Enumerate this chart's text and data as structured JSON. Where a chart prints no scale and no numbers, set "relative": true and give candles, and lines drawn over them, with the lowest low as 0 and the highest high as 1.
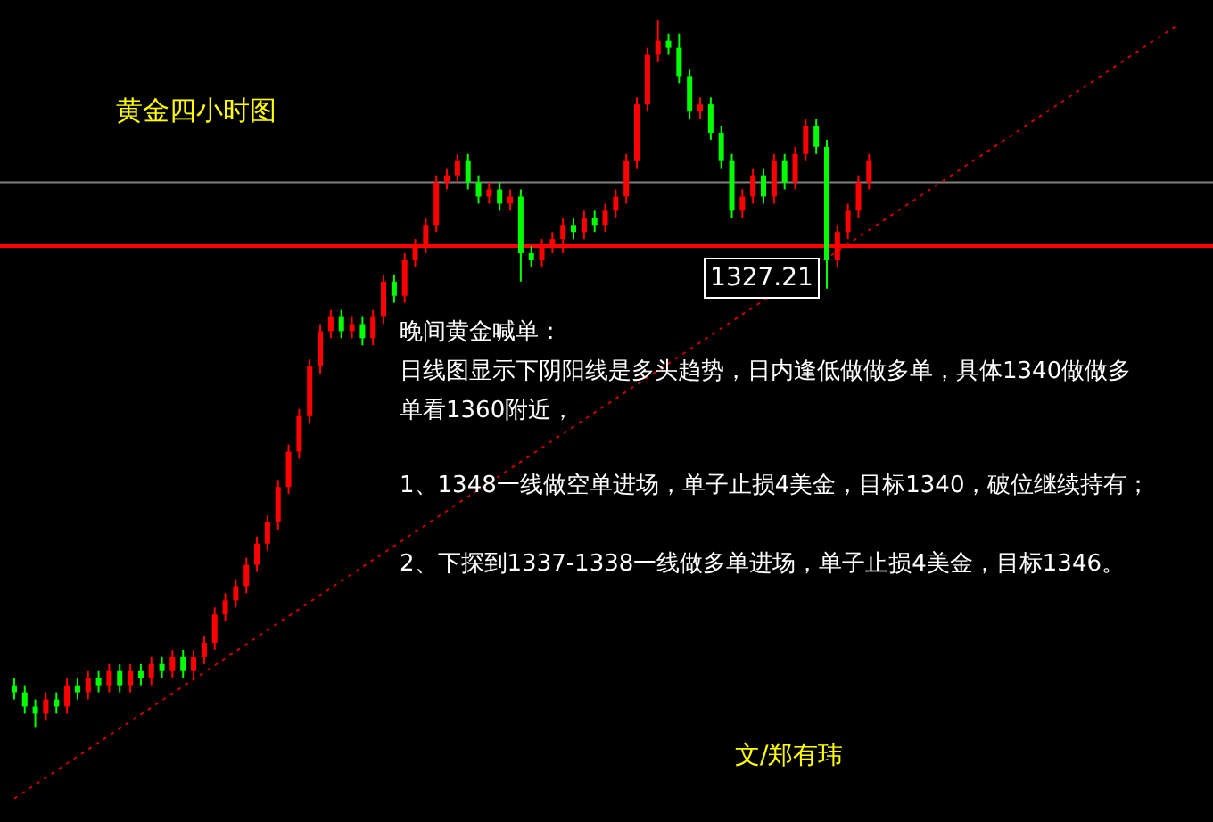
{
  "chart_data": {
    "type": "candlestick",
    "relative": true,
    "title": "黄金四小时图",
    "categories": [
      null,
      null,
      null,
      null,
      null,
      null,
      null,
      null,
      null,
      null,
      null,
      null,
      null,
      null,
      null,
      null,
      null,
      null,
      null,
      null,
      null,
      null,
      null,
      null,
      null,
      null,
      null,
      null,
      null,
      null,
      null,
      null,
      null,
      null,
      null,
      null,
      null,
      null,
      null,
      null,
      null,
      null,
      null,
      null,
      null,
      null,
      null,
      null,
      null,
      null,
      null,
      null,
      null,
      null,
      null,
      null,
      null,
      null,
      null,
      null,
      null,
      null,
      null,
      null,
      null,
      null,
      null,
      null,
      null,
      null,
      null,
      null,
      null,
      null,
      null,
      null,
      null,
      null,
      null,
      null,
      null,
      null,
      null,
      null,
      null,
      null,
      null,
      null,
      null,
      null,
      null,
      null,
      null,
      null,
      null,
      null,
      null,
      null,
      null,
      null,
      null,
      null,
      null,
      null,
      null,
      null,
      null,
      null,
      null,
      null,
      null
    ],
    "ohlc": [
      [
        0.06,
        0.07,
        0.04,
        0.05
      ],
      [
        0.05,
        0.06,
        0.02,
        0.03
      ],
      [
        0.03,
        0.04,
        0,
        0.02
      ],
      [
        0.02,
        0.05,
        0.01,
        0.04
      ],
      [
        0.04,
        0.05,
        0.02,
        0.03
      ],
      [
        0.03,
        0.07,
        0.02,
        0.06
      ],
      [
        0.06,
        0.07,
        0.04,
        0.05
      ],
      [
        0.05,
        0.08,
        0.04,
        0.07
      ],
      [
        0.07,
        0.08,
        0.05,
        0.06
      ],
      [
        0.06,
        0.09,
        0.05,
        0.08
      ],
      [
        0.08,
        0.09,
        0.05,
        0.06
      ],
      [
        0.06,
        0.09,
        0.05,
        0.08
      ],
      [
        0.08,
        0.09,
        0.06,
        0.07
      ],
      [
        0.07,
        0.1,
        0.06,
        0.09
      ],
      [
        0.09,
        0.1,
        0.07,
        0.08
      ],
      [
        0.08,
        0.11,
        0.07,
        0.1
      ],
      [
        0.1,
        0.11,
        0.07,
        0.08
      ],
      [
        0.08,
        0.11,
        0.07,
        0.1
      ],
      [
        0.1,
        0.13,
        0.09,
        0.12
      ],
      [
        0.12,
        0.17,
        0.11,
        0.16
      ],
      [
        0.16,
        0.19,
        0.15,
        0.18
      ],
      [
        0.18,
        0.21,
        0.17,
        0.2
      ],
      [
        0.2,
        0.24,
        0.19,
        0.23
      ],
      [
        0.23,
        0.27,
        0.22,
        0.26
      ],
      [
        0.26,
        0.3,
        0.25,
        0.29
      ],
      [
        0.29,
        0.35,
        0.28,
        0.34
      ],
      [
        0.34,
        0.4,
        0.33,
        0.39
      ],
      [
        0.39,
        0.45,
        0.38,
        0.44
      ],
      [
        0.44,
        0.52,
        0.43,
        0.51
      ],
      [
        0.51,
        0.57,
        0.5,
        0.56
      ],
      [
        0.56,
        0.59,
        0.55,
        0.58
      ],
      [
        0.58,
        0.59,
        0.55,
        0.56
      ],
      [
        0.56,
        0.58,
        0.55,
        0.57
      ],
      [
        0.57,
        0.58,
        0.54,
        0.55
      ],
      [
        0.55,
        0.59,
        0.54,
        0.58
      ],
      [
        0.58,
        0.64,
        0.57,
        0.63
      ],
      [
        0.63,
        0.64,
        0.6,
        0.61
      ],
      [
        0.61,
        0.67,
        0.6,
        0.66
      ],
      [
        0.66,
        0.69,
        0.65,
        0.68
      ],
      [
        0.68,
        0.72,
        0.67,
        0.71
      ],
      [
        0.71,
        0.78,
        0.7,
        0.77
      ],
      [
        0.77,
        0.79,
        0.76,
        0.78
      ],
      [
        0.78,
        0.81,
        0.77,
        0.8
      ],
      [
        0.8,
        0.81,
        0.76,
        0.77
      ],
      [
        0.77,
        0.78,
        0.74,
        0.75
      ],
      [
        0.75,
        0.77,
        0.74,
        0.76
      ],
      [
        0.76,
        0.77,
        0.73,
        0.74
      ],
      [
        0.74,
        0.76,
        0.73,
        0.75
      ],
      [
        0.75,
        0.76,
        0.63,
        0.67
      ],
      [
        0.67,
        0.68,
        0.65,
        0.66
      ],
      [
        0.66,
        0.69,
        0.65,
        0.68
      ],
      [
        0.68,
        0.7,
        0.67,
        0.69
      ],
      [
        0.69,
        0.72,
        0.67,
        0.71
      ],
      [
        0.71,
        0.72,
        0.69,
        0.7
      ],
      [
        0.7,
        0.73,
        0.69,
        0.72
      ],
      [
        0.72,
        0.73,
        0.7,
        0.71
      ],
      [
        0.71,
        0.74,
        0.7,
        0.73
      ],
      [
        0.73,
        0.76,
        0.72,
        0.75
      ],
      [
        0.75,
        0.81,
        0.74,
        0.8
      ],
      [
        0.8,
        0.89,
        0.79,
        0.88
      ],
      [
        0.88,
        0.96,
        0.87,
        0.95
      ],
      [
        0.95,
        1,
        0.94,
        0.97
      ],
      [
        0.97,
        0.98,
        0.95,
        0.96
      ],
      [
        0.96,
        0.98,
        0.91,
        0.92
      ],
      [
        0.92,
        0.93,
        0.86,
        0.87
      ],
      [
        0.87,
        0.89,
        0.86,
        0.88
      ],
      [
        0.88,
        0.89,
        0.83,
        0.84
      ],
      [
        0.84,
        0.85,
        0.79,
        0.8
      ],
      [
        0.8,
        0.81,
        0.72,
        0.73
      ],
      [
        0.73,
        0.76,
        0.72,
        0.75
      ],
      [
        0.75,
        0.79,
        0.74,
        0.78
      ],
      [
        0.78,
        0.79,
        0.74,
        0.75
      ],
      [
        0.75,
        0.81,
        0.74,
        0.8
      ],
      [
        0.8,
        0.81,
        0.76,
        0.77
      ],
      [
        0.77,
        0.82,
        0.76,
        0.81
      ],
      [
        0.81,
        0.86,
        0.8,
        0.85
      ],
      [
        0.85,
        0.86,
        0.81,
        0.82
      ],
      [
        0.82,
        0.83,
        0.62,
        0.66
      ],
      [
        0.66,
        0.71,
        0.65,
        0.7
      ],
      [
        0.7,
        0.74,
        0.69,
        0.73
      ],
      [
        0.73,
        0.78,
        0.72,
        0.77
      ],
      [
        0.77,
        0.81,
        0.76,
        0.8
      ],
      null,
      null,
      null,
      null,
      null,
      null,
      null,
      null,
      null,
      null,
      null,
      null,
      null,
      null,
      null,
      null,
      null,
      null,
      null,
      null,
      null,
      null,
      null,
      null,
      null,
      null,
      null,
      null,
      null
    ],
    "series": [
      {
        "type": "line",
        "values": [
          -0.1,
          null,
          null,
          null,
          null,
          null,
          null,
          null,
          null,
          null,
          null,
          null,
          null,
          null,
          null,
          null,
          null,
          null,
          null,
          null,
          null,
          null,
          null,
          null,
          null,
          null,
          null,
          null,
          null,
          null,
          null,
          null,
          null,
          null,
          null,
          null,
          null,
          null,
          null,
          null,
          null,
          null,
          null,
          null,
          null,
          null,
          null,
          null,
          null,
          null,
          null,
          null,
          null,
          null,
          null,
          null,
          null,
          null,
          null,
          null,
          null,
          null,
          null,
          null,
          null,
          null,
          null,
          null,
          null,
          null,
          null,
          null,
          null,
          null,
          null,
          null,
          null,
          null,
          null,
          null,
          null,
          null,
          null,
          null,
          null,
          null,
          null,
          null,
          null,
          null,
          null,
          null,
          null,
          null,
          null,
          null,
          null,
          null,
          null,
          null,
          null,
          null,
          null,
          null,
          null,
          null,
          null,
          null,
          null,
          null,
          0.99
        ],
        "color": "#cc0000",
        "line_style": "dotted"
      }
    ],
    "ref_lines": [
      {
        "axis": "y",
        "value": 0.68,
        "label": null,
        "color": "#ff0000",
        "line_style": "solid"
      },
      {
        "axis": "y",
        "value": 0.77,
        "label": null,
        "color": "#808080",
        "line_style": "solid"
      }
    ],
    "annotations": [
      "1327.21",
      "晚间黄金喊单：",
      "日线图显示下阴阳线是多头趋势，日内逢低做做多单，具体1340做做多",
      "单看1360附近，",
      "1、1348一线做空单进场，单子止损4美金，目标1340，破位继续持有；",
      "2、下探到1337-1338一线做多单进场，单子止损4美金，目标1346。",
      "文/郑有玮"
    ]
  }
}
